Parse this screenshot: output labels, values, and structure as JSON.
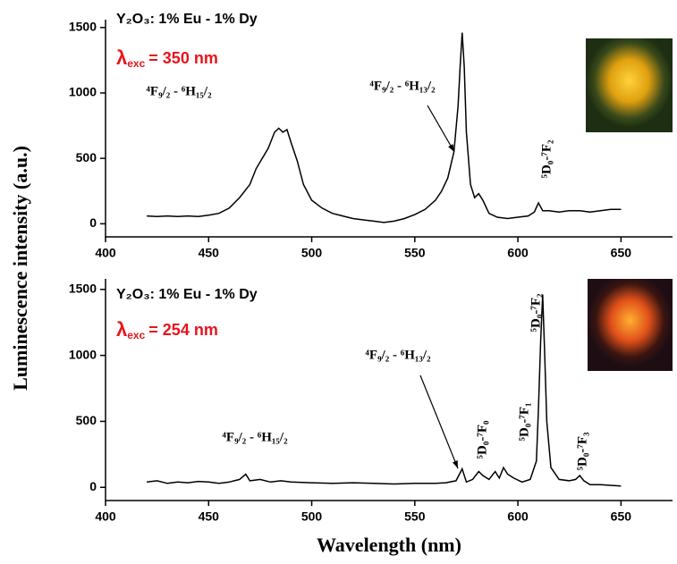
{
  "y_label": "Luminescence intensity (a.u.)",
  "x_label": "Wavelength (nm)",
  "chart_data": [
    {
      "type": "line",
      "title": "Y₂O₃: 1% Eu - 1% Dy",
      "excitation_symbol": "λ",
      "excitation_subscript": "exc",
      "excitation_value": "= 350 nm",
      "annotations": [
        "⁴F₉/₂ - ⁶H₁₅/₂",
        "⁴F₉/₂ - ⁶H₁₃/₂",
        "⁵D₀-⁷F₂"
      ],
      "xlim": [
        400,
        675
      ],
      "xticks": [
        400,
        450,
        500,
        550,
        600,
        650
      ],
      "ylim": [
        -100,
        1560
      ],
      "yticks": [
        0,
        500,
        1000,
        1500
      ],
      "color": "#000000",
      "x": [
        420,
        425,
        430,
        435,
        440,
        445,
        450,
        455,
        460,
        465,
        470,
        473,
        476,
        479,
        482,
        484,
        486,
        488,
        490,
        493,
        496,
        500,
        505,
        510,
        515,
        520,
        525,
        530,
        535,
        540,
        545,
        550,
        555,
        560,
        563,
        566,
        569,
        571,
        572,
        573,
        574,
        575,
        577,
        579,
        581,
        583,
        586,
        590,
        595,
        600,
        605,
        608,
        610,
        612,
        615,
        620,
        625,
        630,
        635,
        640,
        645,
        650
      ],
      "values": [
        60,
        55,
        60,
        55,
        60,
        55,
        65,
        80,
        120,
        200,
        300,
        420,
        500,
        580,
        700,
        730,
        700,
        720,
        620,
        480,
        300,
        180,
        120,
        80,
        60,
        40,
        30,
        20,
        10,
        20,
        40,
        70,
        110,
        180,
        250,
        350,
        550,
        900,
        1200,
        1460,
        1200,
        700,
        300,
        200,
        230,
        180,
        80,
        50,
        40,
        50,
        60,
        90,
        160,
        100,
        100,
        90,
        100,
        100,
        90,
        100,
        110,
        110
      ]
    },
    {
      "type": "line",
      "title": "Y₂O₃: 1% Eu - 1% Dy",
      "excitation_symbol": "λ",
      "excitation_subscript": "exc",
      "excitation_value": "= 254 nm",
      "annotations": [
        "⁴F₉/₂ - ⁶H₁₅/₂",
        "⁴F₉/₂ - ⁶H₁₃/₂",
        "⁵D₀-⁷F₀",
        "⁵D₀-⁷F₁",
        "⁵D₀-⁷F₂",
        "⁵D₀-⁷F₃"
      ],
      "xlim": [
        400,
        675
      ],
      "xticks": [
        400,
        450,
        500,
        550,
        600,
        650
      ],
      "ylim": [
        -100,
        1580
      ],
      "yticks": [
        0,
        500,
        1000,
        1500
      ],
      "color": "#000000",
      "x": [
        420,
        425,
        430,
        435,
        440,
        445,
        450,
        455,
        460,
        465,
        468,
        470,
        475,
        480,
        485,
        490,
        500,
        510,
        520,
        530,
        540,
        550,
        560,
        565,
        570,
        573,
        575,
        578,
        581,
        583,
        586,
        589,
        591,
        593,
        595,
        598,
        602,
        606,
        609,
        610,
        611,
        612,
        613,
        614,
        616,
        620,
        625,
        628,
        630,
        632,
        635,
        640,
        645,
        650
      ],
      "values": [
        40,
        50,
        30,
        40,
        35,
        45,
        40,
        30,
        40,
        60,
        100,
        50,
        60,
        40,
        50,
        40,
        35,
        30,
        35,
        30,
        25,
        30,
        30,
        35,
        50,
        140,
        40,
        60,
        120,
        90,
        60,
        120,
        70,
        150,
        100,
        70,
        40,
        60,
        200,
        600,
        1100,
        1460,
        1000,
        500,
        150,
        60,
        50,
        60,
        90,
        50,
        20,
        20,
        15,
        10
      ]
    }
  ]
}
